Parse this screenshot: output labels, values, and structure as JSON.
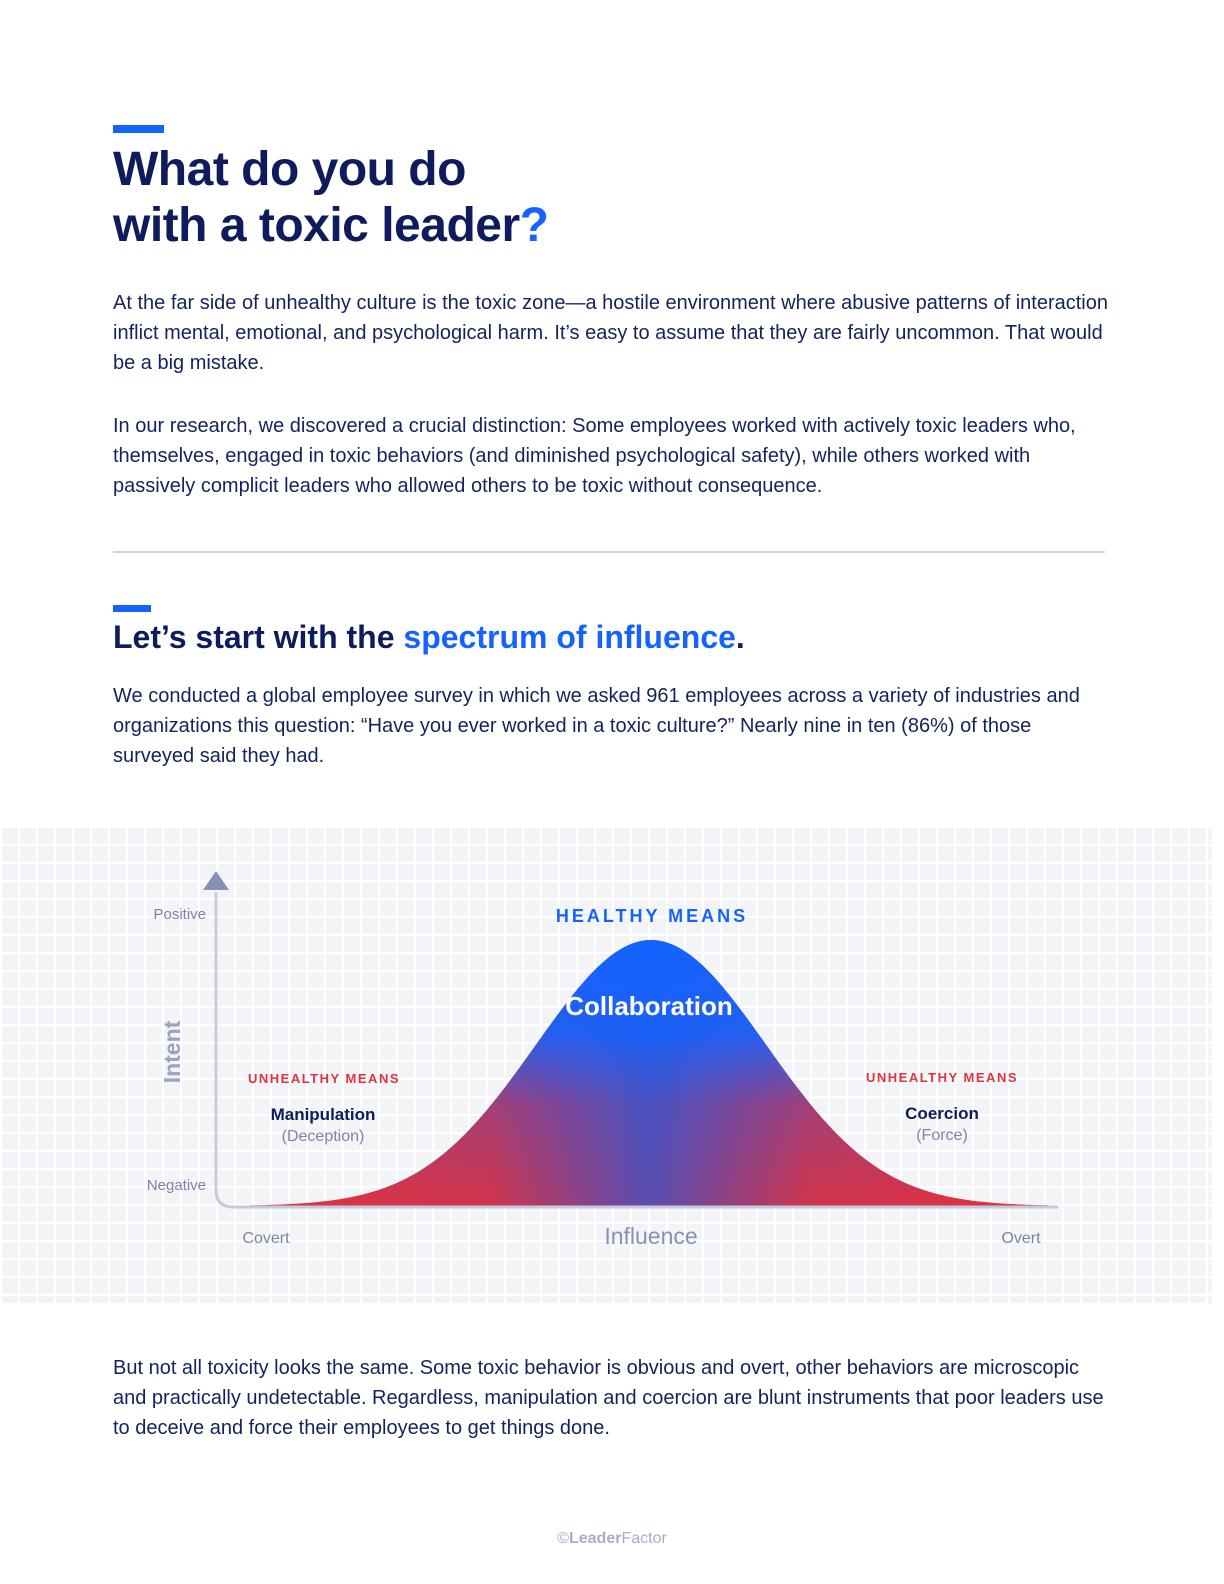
{
  "header": {
    "title_line1": "What do you do",
    "title_line2": "with a toxic leader",
    "title_mark": "?"
  },
  "intro": {
    "paragraph1": "At the far side of unhealthy culture is the toxic zone—a hostile environment where abusive patterns of interaction inflict mental, emotional, and psychological harm. It’s easy to assume that they are fairly uncommon. That would be a big mistake.",
    "paragraph2": "In our research, we discovered a crucial distinction: Some employees worked with actively toxic leaders who, themselves, engaged in toxic behaviors (and diminished psychological safety), while others worked with passively complicit leaders who allowed others to be toxic without consequence."
  },
  "section2": {
    "heading_prefix": "Let’s start with the ",
    "heading_highlight": "spectrum of influence",
    "heading_suffix": ".",
    "paragraph": "We conducted a global employee survey in which we asked 961 employees across a variety of industries and organizations this question: “Have you ever worked in a toxic culture?” Nearly nine in ten (86%) of those surveyed said they had."
  },
  "chart_data": {
    "type": "area",
    "ylabel": "Intent",
    "xlabel": "Influence",
    "y_tick_labels": [
      "Negative",
      "Positive"
    ],
    "x_tick_labels": [
      "Covert",
      "Overt"
    ],
    "regions": [
      {
        "label": "UNHEALTHY MEANS",
        "name": "Manipulation",
        "detail": "(Deception)",
        "color": "#e0323f"
      },
      {
        "label": "HEALTHY MEANS",
        "name": "Collaboration",
        "detail": "",
        "color": "#1463ff"
      },
      {
        "label": "UNHEALTHY MEANS",
        "name": "Coercion",
        "detail": "(Force)",
        "color": "#e0323f"
      }
    ],
    "grid": true
  },
  "outro": {
    "paragraph": "But not all toxicity looks the same. Some toxic behavior is obvious and overt, other behaviors are microscopic and practically undetectable. Regardless, manipulation and coercion are blunt instruments that poor leaders use to deceive and force their employees to get things done."
  },
  "footer": {
    "copyright": "©",
    "brand_bold": "Leader",
    "brand_light": "Factor"
  },
  "colors": {
    "accent": "#1463ff",
    "navy": "#0e1b5c",
    "red": "#e0323f",
    "axis": "#8a90b4"
  }
}
